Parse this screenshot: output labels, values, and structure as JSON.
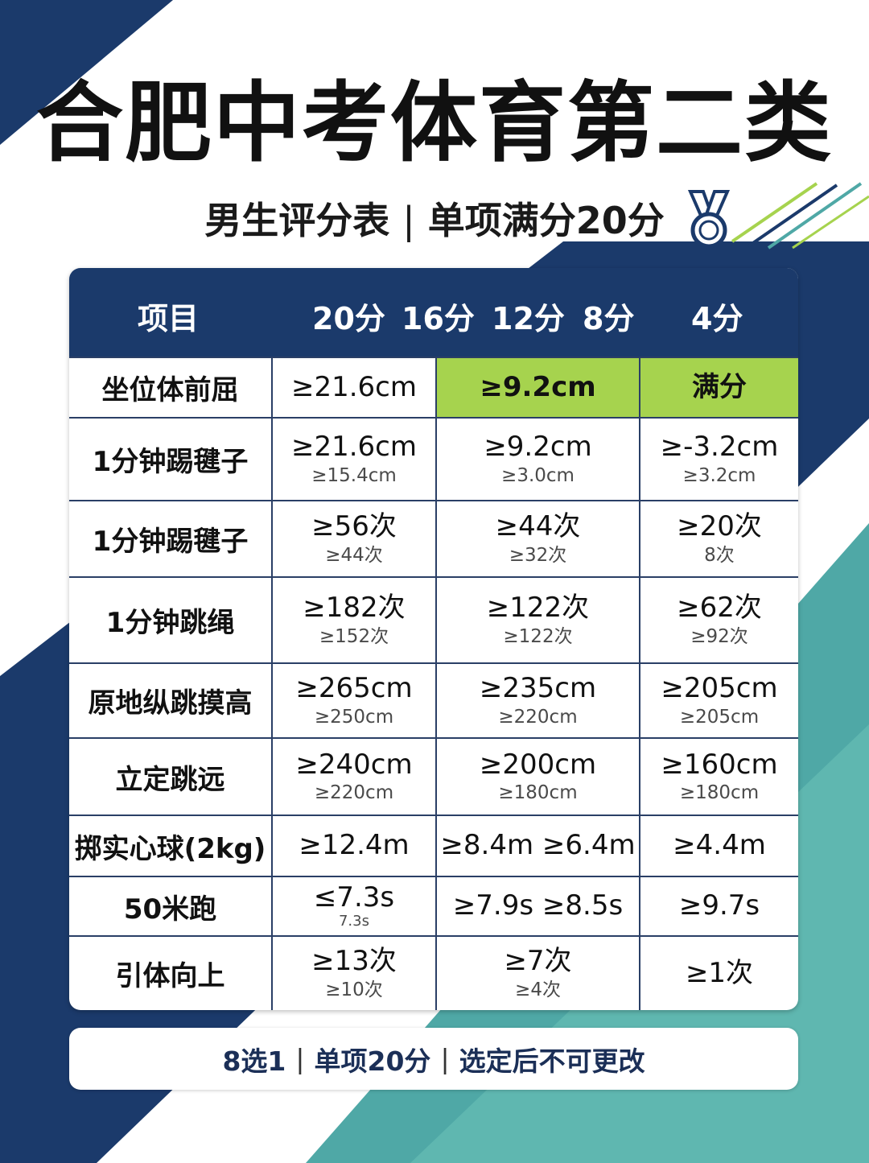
{
  "title": "合肥中考体育第二类",
  "subtitle": {
    "left": "男生评分表",
    "separator": "|",
    "right": "单项满分20分"
  },
  "icons": {
    "medal": "medal-icon",
    "stripes": "decorative-stripes"
  },
  "colors": {
    "navy": "#1b3a6b",
    "teal": "#4fa8a6",
    "highlight": "#a6d34e"
  },
  "table": {
    "headers": {
      "item": "项目",
      "s20": "20分",
      "s16": "16分",
      "s12": "12分",
      "s8": "8分",
      "s4": "4分"
    },
    "rows": [
      {
        "name": "坐位体前屈",
        "c1": {
          "main": "≥21.6cm",
          "sub": ""
        },
        "c2": {
          "main": "≥9.2cm",
          "sub": ""
        },
        "c3": {
          "main": "满分",
          "sub": ""
        }
      },
      {
        "name": "1分钟踢毽子",
        "c1": {
          "main": "≥21.6cm",
          "sub": "≥15.4cm"
        },
        "c2": {
          "main": "≥9.2cm",
          "sub": "≥3.0cm"
        },
        "c3": {
          "main": "≥-3.2cm",
          "sub": "≥3.2cm"
        }
      },
      {
        "name": "1分钟踢毽子",
        "c1": {
          "main": "≥56次",
          "sub": "≥44次"
        },
        "c2": {
          "main": "≥44次",
          "sub": "≥32次"
        },
        "c3": {
          "main": "≥20次",
          "sub": "8次"
        }
      },
      {
        "name": "1分钟跳绳",
        "c1": {
          "main": "≥182次",
          "sub": "≥152次"
        },
        "c2": {
          "main": "≥122次",
          "sub": "≥122次"
        },
        "c3": {
          "main": "≥62次",
          "sub": "≥92次"
        }
      },
      {
        "name": "原地纵跳摸高",
        "c1": {
          "main": "≥265cm",
          "sub": "≥250cm"
        },
        "c2": {
          "main": "≥235cm",
          "sub": "≥220cm"
        },
        "c3": {
          "main": "≥205cm",
          "sub": "≥205cm"
        }
      },
      {
        "name": "立定跳远",
        "c1": {
          "main": "≥240cm",
          "sub": "≥220cm"
        },
        "c2": {
          "main": "≥200cm",
          "sub": "≥180cm"
        },
        "c3": {
          "main": "≥160cm",
          "sub": "≥180cm"
        }
      },
      {
        "name": "掷实心球(2kg)",
        "c1": {
          "main": "≥12.4m",
          "sub": ""
        },
        "c2": {
          "main": "≥8.4m ≥6.4m",
          "sub": ""
        },
        "c3": {
          "main": "≥4.4m",
          "sub": ""
        }
      },
      {
        "name": "50米跑",
        "c1": {
          "main": "≤7.3s",
          "sub": "7.3s"
        },
        "c2": {
          "main": "≥7.9s  ≥8.5s",
          "sub": ""
        },
        "c3": {
          "main": "≥9.7s",
          "sub": ""
        }
      },
      {
        "name": "引体向上",
        "c1": {
          "main": "≥13次",
          "sub": "≥10次"
        },
        "c2": {
          "main": "≥7次",
          "sub": "≥4次"
        },
        "c3": {
          "main": "≥1次",
          "sub": ""
        }
      }
    ]
  },
  "footer": {
    "part1": "8选1",
    "part2": "单项20分",
    "part3": "选定后不可更改",
    "separator": "|"
  }
}
